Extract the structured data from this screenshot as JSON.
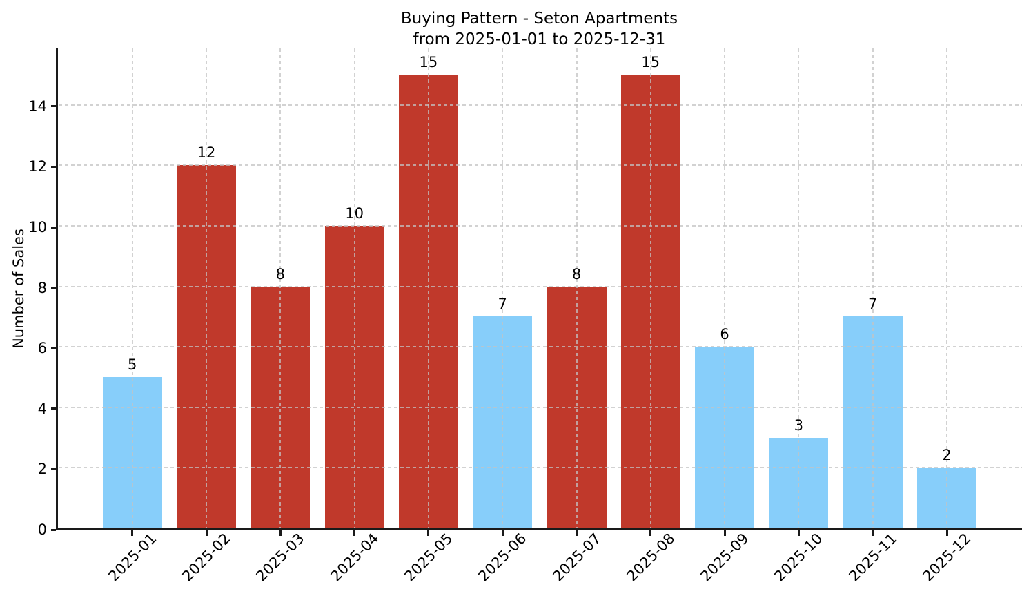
{
  "figure": {
    "title_line1": "Buying Pattern - Seton Apartments",
    "title_line2": "from 2025-01-01 to 2025-12-31"
  },
  "chart_data": {
    "type": "bar",
    "title": "Buying Pattern - Seton Apartments\nfrom 2025-01-01 to 2025-12-31",
    "title_line1": "Buying Pattern - Seton Apartments",
    "title_line2": "from 2025-01-01 to 2025-12-31",
    "xlabel": "",
    "ylabel": "Number of Sales",
    "categories": [
      "2025-01",
      "2025-02",
      "2025-03",
      "2025-04",
      "2025-05",
      "2025-06",
      "2025-07",
      "2025-08",
      "2025-09",
      "2025-10",
      "2025-11",
      "2025-12"
    ],
    "values": [
      5,
      12,
      8,
      10,
      15,
      7,
      8,
      15,
      6,
      3,
      7,
      2
    ],
    "bar_colors": [
      "#87CEFA",
      "#C0392B",
      "#C0392B",
      "#C0392B",
      "#C0392B",
      "#87CEFA",
      "#C0392B",
      "#C0392B",
      "#87CEFA",
      "#87CEFA",
      "#87CEFA",
      "#87CEFA"
    ],
    "colors": {
      "low_bar": "#87CEFA",
      "high_bar": "#C0392B",
      "axis": "#1a1a1a",
      "grid": "#c3c3c3",
      "background": "#ffffff",
      "text": "#000000"
    },
    "yticks": [
      0,
      2,
      4,
      6,
      8,
      10,
      12,
      14
    ],
    "ylim": [
      0,
      15.9
    ],
    "grid": true,
    "grid_linestyle": "dashed",
    "legend_position": "none"
  }
}
